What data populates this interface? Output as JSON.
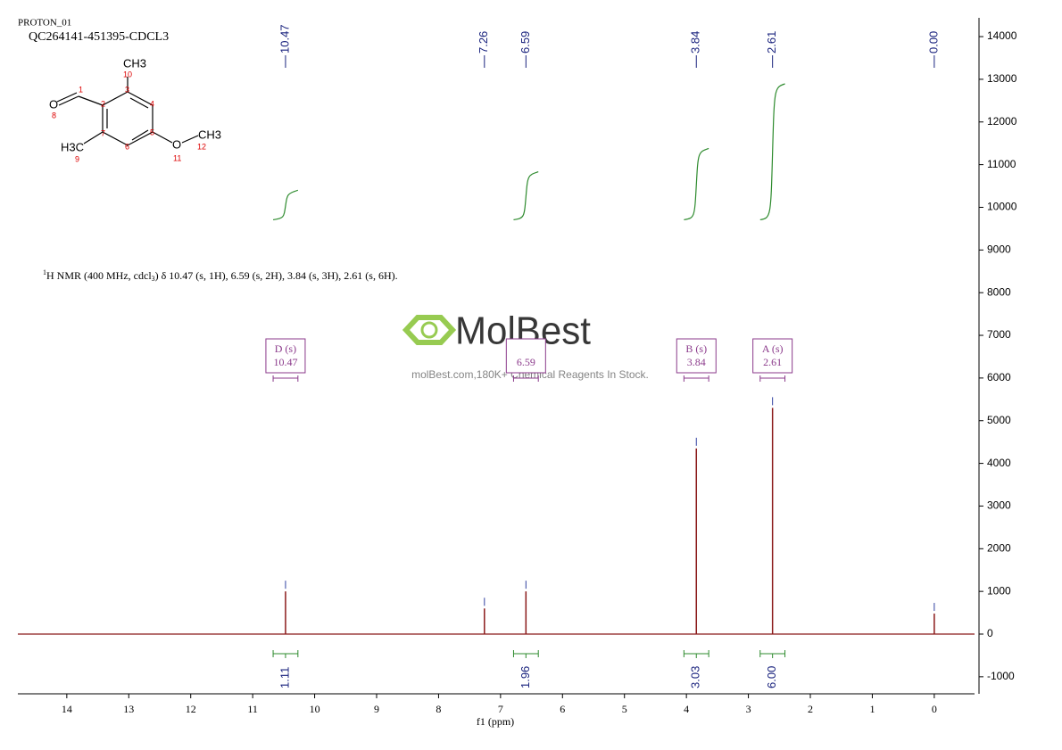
{
  "chart_data": {
    "type": "nmr",
    "header": [
      "PROTON_01",
      "QC264141-451395-CDCL3"
    ],
    "description": {
      "sup": "1",
      "text": "H NMR (400 MHz, cdcl",
      "sub": "3",
      "rest": ") δ 10.47 (s, 1H), 6.59 (s, 2H), 3.84 (s, 3H), 2.61 (s, 6H)."
    },
    "watermark": {
      "logo": "MolBest",
      "tagline": "molBest.com,180K+ Chemical Reagents In Stock."
    },
    "molecule": {
      "groups": [
        "CH3",
        "O",
        "H3C",
        "O",
        "CH3"
      ],
      "atom_numbers": [
        "1",
        "2",
        "3",
        "4",
        "5",
        "6",
        "7",
        "8",
        "9",
        "10",
        "11",
        "12"
      ]
    },
    "x_label": "f1 (ppm)",
    "xlim": [
      14.79,
      -0.65
    ],
    "xticks": [
      14,
      13,
      12,
      11,
      10,
      9,
      8,
      7,
      6,
      5,
      4,
      3,
      2,
      1,
      0
    ],
    "ylim": [
      -1400,
      14440
    ],
    "yticks": [
      -1000,
      0,
      1000,
      2000,
      3000,
      4000,
      5000,
      6000,
      7000,
      8000,
      9000,
      10000,
      11000,
      12000,
      13000,
      14000
    ],
    "color": "#8b1a1a",
    "peaks": {
      "x": [
        10.47,
        7.26,
        6.59,
        3.84,
        2.61,
        0
      ],
      "x_labels": [
        "10.47",
        "7.26",
        "6.59",
        "3.84",
        "2.61",
        "0.00"
      ],
      "values": [
        1000,
        600,
        1000,
        4350,
        5300,
        480
      ]
    },
    "integrals": {
      "color": "#2e8b2e",
      "x": [
        10.47,
        6.59,
        3.84,
        2.61
      ],
      "values": [
        1.11,
        1.96,
        3.03,
        6.0
      ],
      "value_labels": [
        "1.11",
        "1.96",
        "3.03",
        "6.00"
      ]
    },
    "multiplets": [
      {
        "name": "D (s)",
        "shift": "10.47"
      },
      {
        "shift": "6.59"
      },
      {
        "name": "B (s)",
        "shift": "3.84"
      },
      {
        "name": "A (s)",
        "shift": "2.61"
      }
    ]
  }
}
